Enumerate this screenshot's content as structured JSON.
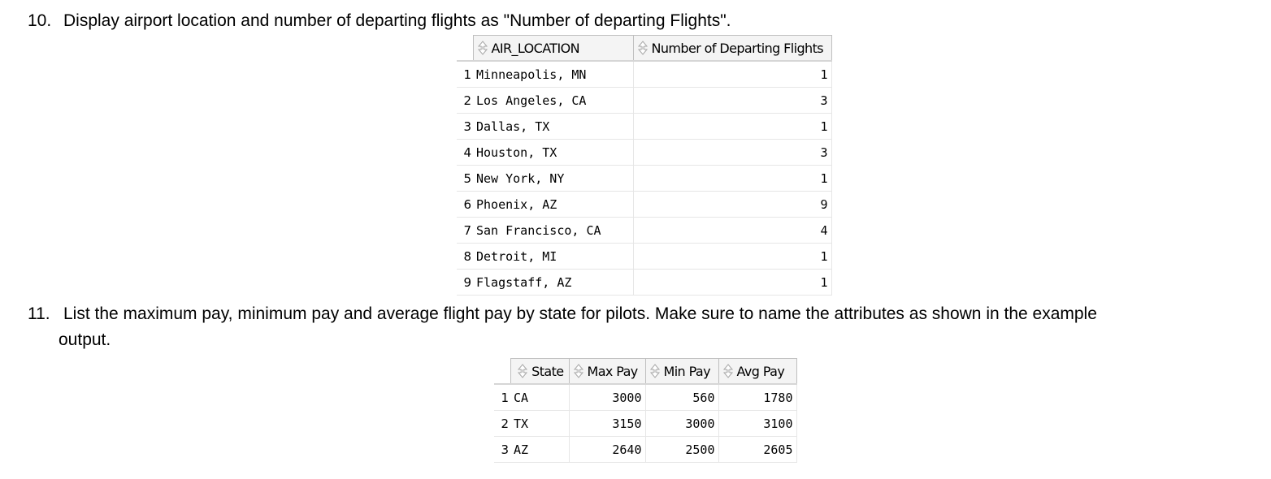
{
  "q10": {
    "number": "10.",
    "text": "Display airport location and number of departing flights as \"Number of departing Flights\"."
  },
  "grid10": {
    "columns": [
      "AIR_LOCATION",
      "Number of Departing Flights"
    ],
    "rows": [
      {
        "n": "1",
        "loc": "Minneapolis, MN",
        "count": "1"
      },
      {
        "n": "2",
        "loc": "Los Angeles, CA",
        "count": "3"
      },
      {
        "n": "3",
        "loc": "Dallas, TX",
        "count": "1"
      },
      {
        "n": "4",
        "loc": "Houston, TX",
        "count": "3"
      },
      {
        "n": "5",
        "loc": "New York, NY",
        "count": "1"
      },
      {
        "n": "6",
        "loc": "Phoenix, AZ",
        "count": "9"
      },
      {
        "n": "7",
        "loc": "San Francisco, CA",
        "count": "4"
      },
      {
        "n": "8",
        "loc": "Detroit, MI",
        "count": "1"
      },
      {
        "n": "9",
        "loc": "Flagstaff, AZ",
        "count": "1"
      }
    ]
  },
  "q11": {
    "number": "11.",
    "text_line1": "List the maximum pay, minimum pay and average flight pay by state for pilots.  Make sure to name the attributes as shown in the example",
    "text_line2": "output."
  },
  "grid11": {
    "columns": [
      "State",
      "Max Pay",
      "Min Pay",
      "Avg Pay"
    ],
    "rows": [
      {
        "n": "1",
        "state": "CA",
        "max": "3000",
        "min": "560",
        "avg": "1780"
      },
      {
        "n": "2",
        "state": "TX",
        "max": "3150",
        "min": "3000",
        "avg": "3100"
      },
      {
        "n": "3",
        "state": "AZ",
        "max": "2640",
        "min": "2500",
        "avg": "2605"
      }
    ]
  },
  "icons": {
    "sort": "sort-arrows-icon"
  }
}
